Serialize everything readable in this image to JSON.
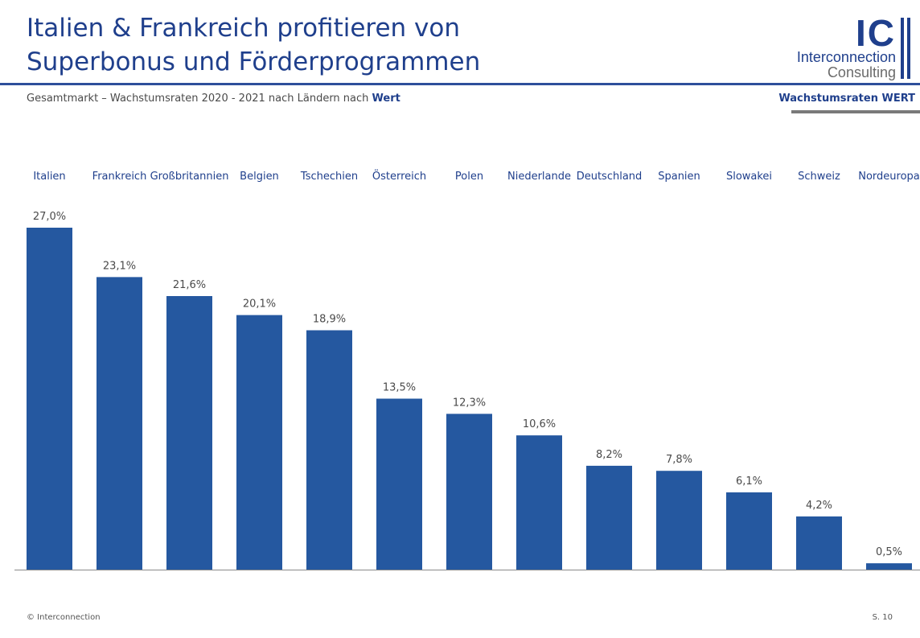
{
  "header": {
    "title_line1": "Italien & Frankreich profitieren von",
    "title_line2": "Superbonus und Förderprogrammen",
    "subtitle_prefix": "Gesamtmarkt – Wachstumsraten 2020 - 2021 nach Ländern nach ",
    "subtitle_highlight": "Wert",
    "badge": "Wachstumsraten WERT"
  },
  "logo": {
    "mark": "IC",
    "line1": "Interconnection",
    "line2": "Consulting"
  },
  "footer": {
    "copyright": "© Interconnection",
    "page": "S. 10"
  },
  "colors": {
    "bar": "#2558a0",
    "category_text": "#1f3f8c",
    "value_text": "#4a4a4a",
    "baseline": "#8a8a8a"
  },
  "chart_data": {
    "type": "bar",
    "categories": [
      "Italien",
      "Frankreich",
      "Großbritannien",
      "Belgien",
      "Tschechien",
      "Österreich",
      "Polen",
      "Niederlande",
      "Deutschland",
      "Spanien",
      "Slowakei",
      "Schweiz",
      "Nordeuropa"
    ],
    "values": [
      27.0,
      23.1,
      21.6,
      20.1,
      18.9,
      13.5,
      12.3,
      10.6,
      8.2,
      7.8,
      6.1,
      4.2,
      0.5
    ],
    "value_labels": [
      "27,0%",
      "23,1%",
      "21,6%",
      "20,1%",
      "18,9%",
      "13,5%",
      "12,3%",
      "10,6%",
      "8,2%",
      "7,8%",
      "6,1%",
      "4,2%",
      "0,5%"
    ],
    "category_position": "top",
    "ylim": [
      0,
      27
    ],
    "grid": false,
    "legend": "none"
  }
}
